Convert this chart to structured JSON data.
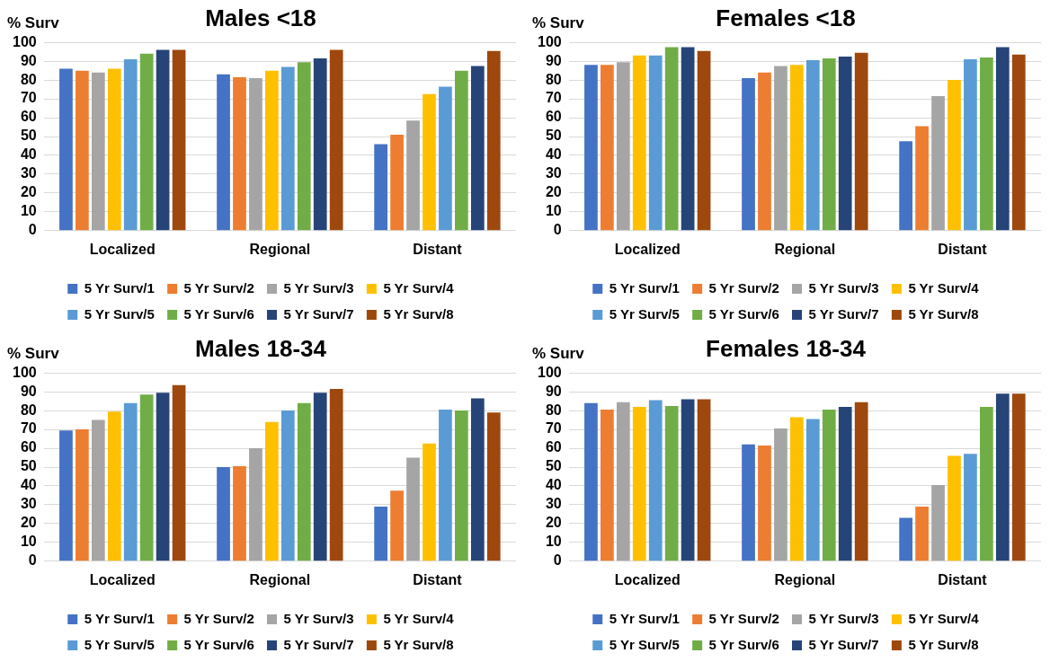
{
  "chart_data": [
    {
      "type": "bar",
      "title": "Males <18",
      "ylabel": "% Surv",
      "categories": [
        "Localized",
        "Regional",
        "Distant"
      ],
      "ylim": [
        0,
        100
      ],
      "yticks": [
        0,
        10,
        20,
        30,
        40,
        50,
        60,
        70,
        80,
        90,
        100
      ],
      "grid": "y",
      "legend": "bottom",
      "series": [
        {
          "name": "5 Yr Surv/1",
          "color": "#4472c4",
          "values": [
            86,
            83,
            46
          ]
        },
        {
          "name": "5 Yr Surv/2",
          "color": "#ed7d31",
          "values": [
            85,
            81.5,
            51
          ]
        },
        {
          "name": "5 Yr Surv/3",
          "color": "#a5a5a5",
          "values": [
            84,
            81,
            58.5
          ]
        },
        {
          "name": "5 Yr Surv/4",
          "color": "#ffc000",
          "values": [
            86,
            85,
            72.5
          ]
        },
        {
          "name": "5 Yr Surv/5",
          "color": "#5b9bd5",
          "values": [
            91,
            87,
            76.5
          ]
        },
        {
          "name": "5 Yr Surv/6",
          "color": "#70ad47",
          "values": [
            94,
            89.5,
            85
          ]
        },
        {
          "name": "5 Yr Surv/7",
          "color": "#264478",
          "values": [
            96,
            91.5,
            87.5
          ]
        },
        {
          "name": "5 Yr Surv/8",
          "color": "#9e480e",
          "values": [
            96,
            96,
            95.5
          ]
        }
      ]
    },
    {
      "type": "bar",
      "title": "Females <18",
      "ylabel": "% Surv",
      "categories": [
        "Localized",
        "Regional",
        "Distant"
      ],
      "ylim": [
        0,
        100
      ],
      "yticks": [
        0,
        10,
        20,
        30,
        40,
        50,
        60,
        70,
        80,
        90,
        100
      ],
      "grid": "y",
      "legend": "bottom",
      "series": [
        {
          "name": "5 Yr Surv/1",
          "color": "#4472c4",
          "values": [
            88,
            81,
            47.5
          ]
        },
        {
          "name": "5 Yr Surv/2",
          "color": "#ed7d31",
          "values": [
            88,
            84,
            55.5
          ]
        },
        {
          "name": "5 Yr Surv/3",
          "color": "#a5a5a5",
          "values": [
            89.5,
            87.5,
            71.5
          ]
        },
        {
          "name": "5 Yr Surv/4",
          "color": "#ffc000",
          "values": [
            93,
            88,
            80
          ]
        },
        {
          "name": "5 Yr Surv/5",
          "color": "#5b9bd5",
          "values": [
            93,
            90.5,
            91
          ]
        },
        {
          "name": "5 Yr Surv/6",
          "color": "#70ad47",
          "values": [
            97.5,
            91.5,
            92
          ]
        },
        {
          "name": "5 Yr Surv/7",
          "color": "#264478",
          "values": [
            97.5,
            92.5,
            97.5
          ]
        },
        {
          "name": "5 Yr Surv/8",
          "color": "#9e480e",
          "values": [
            95.5,
            94.5,
            93.5
          ]
        }
      ]
    },
    {
      "type": "bar",
      "title": "Males 18-34",
      "ylabel": "% Surv",
      "categories": [
        "Localized",
        "Regional",
        "Distant"
      ],
      "ylim": [
        0,
        100
      ],
      "yticks": [
        0,
        10,
        20,
        30,
        40,
        50,
        60,
        70,
        80,
        90,
        100
      ],
      "grid": "y",
      "legend": "bottom",
      "series": [
        {
          "name": "5 Yr Surv/1",
          "color": "#4472c4",
          "values": [
            69.5,
            50,
            29
          ]
        },
        {
          "name": "5 Yr Surv/2",
          "color": "#ed7d31",
          "values": [
            70,
            50.5,
            37.5
          ]
        },
        {
          "name": "5 Yr Surv/3",
          "color": "#a5a5a5",
          "values": [
            75,
            60,
            55
          ]
        },
        {
          "name": "5 Yr Surv/4",
          "color": "#ffc000",
          "values": [
            79.5,
            74,
            62.5
          ]
        },
        {
          "name": "5 Yr Surv/5",
          "color": "#5b9bd5",
          "values": [
            84,
            80,
            80.5
          ]
        },
        {
          "name": "5 Yr Surv/6",
          "color": "#70ad47",
          "values": [
            88.5,
            84,
            80
          ]
        },
        {
          "name": "5 Yr Surv/7",
          "color": "#264478",
          "values": [
            89.5,
            89.5,
            86.5
          ]
        },
        {
          "name": "5 Yr Surv/8",
          "color": "#9e480e",
          "values": [
            93.5,
            91.5,
            79
          ]
        }
      ]
    },
    {
      "type": "bar",
      "title": "Females 18-34",
      "ylabel": "% Surv",
      "categories": [
        "Localized",
        "Regional",
        "Distant"
      ],
      "ylim": [
        0,
        100
      ],
      "yticks": [
        0,
        10,
        20,
        30,
        40,
        50,
        60,
        70,
        80,
        90,
        100
      ],
      "grid": "y",
      "legend": "bottom",
      "series": [
        {
          "name": "5 Yr Surv/1",
          "color": "#4472c4",
          "values": [
            84,
            62,
            23
          ]
        },
        {
          "name": "5 Yr Surv/2",
          "color": "#ed7d31",
          "values": [
            80.5,
            61.5,
            29
          ]
        },
        {
          "name": "5 Yr Surv/3",
          "color": "#a5a5a5",
          "values": [
            84.5,
            70.5,
            40.5
          ]
        },
        {
          "name": "5 Yr Surv/4",
          "color": "#ffc000",
          "values": [
            82,
            76.5,
            56
          ]
        },
        {
          "name": "5 Yr Surv/5",
          "color": "#5b9bd5",
          "values": [
            85.5,
            75.5,
            57
          ]
        },
        {
          "name": "5 Yr Surv/6",
          "color": "#70ad47",
          "values": [
            82.5,
            80.5,
            82
          ]
        },
        {
          "name": "5 Yr Surv/7",
          "color": "#264478",
          "values": [
            86,
            82,
            89
          ]
        },
        {
          "name": "5 Yr Surv/8",
          "color": "#9e480e",
          "values": [
            86,
            84.5,
            89
          ]
        }
      ]
    }
  ]
}
